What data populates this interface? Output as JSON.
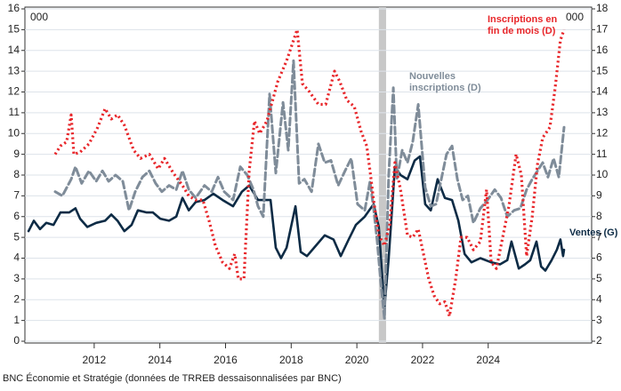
{
  "chart_data": {
    "type": "line",
    "y_unit": "000",
    "y2_unit": "000",
    "caption": "BNC Économie et Stratégie (données de TRREB dessaisonnalisées par BNC)",
    "xlim": [
      2009.89,
      2027.15
    ],
    "xticks": [
      {
        "value": 2012,
        "label": "2012"
      },
      {
        "value": 2014,
        "label": "2014"
      },
      {
        "value": 2016,
        "label": "2016"
      },
      {
        "value": 2018,
        "label": "2018"
      },
      {
        "value": 2020,
        "label": "2020"
      },
      {
        "value": 2022,
        "label": "2022"
      },
      {
        "value": 2024,
        "label": "2024"
      }
    ],
    "ylim": [
      0,
      16
    ],
    "yticks": [
      0,
      1,
      2,
      3,
      4,
      5,
      6,
      7,
      8,
      9,
      10,
      11,
      12,
      13,
      14,
      15,
      16
    ],
    "y2lim": [
      2,
      18
    ],
    "y2ticks": [
      2,
      3,
      4,
      5,
      6,
      7,
      8,
      9,
      10,
      11,
      12,
      13,
      14,
      15,
      16,
      17,
      18
    ],
    "grid": true,
    "shaded_regions": [
      [
        2020.67,
        2020.89
      ]
    ],
    "series": [
      {
        "label": [
          "Ventes (G)"
        ],
        "color": "#0d2b45",
        "style": "solid",
        "x": [
          2010.0,
          2010.16,
          2010.35,
          2010.54,
          2010.76,
          2010.97,
          2011.24,
          2011.43,
          2011.57,
          2011.79,
          2012.06,
          2012.33,
          2012.52,
          2012.71,
          2012.92,
          2013.14,
          2013.33,
          2013.6,
          2013.79,
          2014.01,
          2014.28,
          2014.5,
          2014.69,
          2014.88,
          2015.09,
          2015.36,
          2015.63,
          2015.91,
          2016.23,
          2016.5,
          2016.72,
          2016.99,
          2017.21,
          2017.37,
          2017.53,
          2017.69,
          2017.86,
          2018.13,
          2018.29,
          2018.48,
          2018.75,
          2019.02,
          2019.29,
          2019.51,
          2019.75,
          2019.97,
          2020.24,
          2020.51,
          2020.67,
          2020.84,
          2020.97,
          2021.16,
          2021.33,
          2021.54,
          2021.76,
          2021.92,
          2022.08,
          2022.25,
          2022.46,
          2022.68,
          2022.9,
          2023.09,
          2023.28,
          2023.49,
          2023.76,
          2024.09,
          2024.36,
          2024.58,
          2024.71,
          2024.93,
          2025.12,
          2025.28,
          2025.47,
          2025.61,
          2025.74,
          2025.93,
          2026.09,
          2026.2,
          2026.28,
          2026.31
        ],
        "values": [
          5.3,
          5.8,
          5.4,
          5.7,
          5.6,
          6.2,
          6.2,
          6.4,
          5.9,
          5.5,
          5.7,
          5.8,
          6.1,
          5.8,
          5.3,
          5.6,
          6.3,
          6.2,
          6.2,
          5.9,
          5.8,
          6.0,
          6.9,
          6.3,
          6.7,
          6.8,
          7.1,
          6.8,
          6.5,
          7.2,
          7.5,
          6.8,
          6.8,
          6.8,
          4.5,
          4.0,
          4.5,
          6.5,
          4.3,
          4.1,
          4.6,
          5.1,
          4.9,
          4.1,
          4.9,
          5.6,
          6.0,
          6.6,
          5.5,
          1.6,
          4.0,
          8.4,
          8.0,
          7.8,
          8.7,
          8.9,
          6.6,
          6.3,
          7.8,
          6.9,
          6.8,
          5.8,
          4.2,
          3.8,
          4.0,
          3.8,
          3.7,
          3.9,
          4.8,
          3.5,
          3.7,
          3.9,
          4.8,
          3.6,
          3.4,
          3.9,
          4.4,
          4.9,
          4.1,
          4.4
        ]
      },
      {
        "label": [
          "Nouvelles",
          "inscriptions (D)"
        ],
        "color": "#7f8c99",
        "style": "dashed",
        "axis": "y2",
        "x": [
          2010.81,
          2011.03,
          2011.3,
          2011.43,
          2011.62,
          2011.84,
          2012.06,
          2012.25,
          2012.44,
          2012.65,
          2012.87,
          2013.06,
          2013.25,
          2013.47,
          2013.68,
          2013.87,
          2014.06,
          2014.28,
          2014.5,
          2014.69,
          2014.88,
          2015.09,
          2015.36,
          2015.58,
          2015.77,
          2015.96,
          2016.23,
          2016.45,
          2016.66,
          2016.85,
          2016.99,
          2017.15,
          2017.34,
          2017.53,
          2017.75,
          2017.91,
          2018.07,
          2018.24,
          2018.4,
          2018.62,
          2018.83,
          2019.02,
          2019.21,
          2019.43,
          2019.64,
          2019.83,
          2020.02,
          2020.24,
          2020.4,
          2020.51,
          2020.62,
          2020.73,
          2020.84,
          2020.97,
          2021.11,
          2021.22,
          2021.38,
          2021.54,
          2021.7,
          2021.87,
          2022.08,
          2022.25,
          2022.41,
          2022.57,
          2022.73,
          2022.9,
          2023.06,
          2023.22,
          2023.38,
          2023.55,
          2023.76,
          2023.98,
          2024.2,
          2024.39,
          2024.58,
          2024.79,
          2024.98,
          2025.17,
          2025.34,
          2025.5,
          2025.66,
          2025.82,
          2025.99,
          2026.15,
          2026.31
        ],
        "values": [
          9.2,
          9.0,
          9.8,
          10.4,
          9.6,
          10.2,
          9.7,
          10.2,
          9.7,
          10.0,
          9.7,
          8.3,
          9.2,
          9.9,
          10.2,
          9.6,
          9.2,
          9.5,
          9.3,
          10.2,
          9.3,
          8.9,
          9.5,
          9.2,
          9.9,
          9.2,
          8.8,
          10.4,
          10.0,
          9.3,
          8.5,
          8.0,
          13.9,
          10.1,
          13.5,
          11.2,
          15.5,
          9.6,
          9.8,
          9.2,
          11.5,
          10.6,
          10.7,
          9.5,
          10.2,
          10.8,
          8.6,
          8.3,
          9.7,
          8.4,
          6.8,
          4.8,
          3.1,
          10.0,
          14.2,
          9.8,
          11.2,
          10.6,
          11.6,
          13.4,
          9.4,
          8.5,
          8.6,
          9.8,
          11.0,
          11.4,
          9.8,
          8.8,
          9.0,
          7.7,
          8.4,
          8.8,
          9.3,
          8.9,
          8.0,
          8.3,
          8.4,
          9.3,
          9.8,
          10.2,
          10.6,
          9.9,
          10.8,
          9.9,
          12.3
        ]
      },
      {
        "label": [
          "Inscriptions en",
          "fin de mois (D)"
        ],
        "color": "#e8262a",
        "style": "dotted",
        "axis": "y2",
        "x": [
          2010.81,
          2010.97,
          2011.16,
          2011.3,
          2011.38,
          2011.57,
          2011.84,
          2012.11,
          2012.33,
          2012.52,
          2012.71,
          2012.92,
          2013.2,
          2013.41,
          2013.68,
          2013.95,
          2014.14,
          2014.41,
          2014.69,
          2014.88,
          2015.09,
          2015.31,
          2015.5,
          2015.69,
          2015.91,
          2016.12,
          2016.28,
          2016.39,
          2016.56,
          2016.72,
          2016.88,
          2017.04,
          2017.26,
          2017.59,
          2017.86,
          2018.18,
          2018.34,
          2018.56,
          2018.83,
          2019.05,
          2019.32,
          2019.48,
          2019.7,
          2019.92,
          2020.13,
          2020.3,
          2020.4,
          2020.51,
          2020.67,
          2020.84,
          2021.0,
          2021.16,
          2021.33,
          2021.54,
          2021.7,
          2021.87,
          2022.03,
          2022.19,
          2022.35,
          2022.52,
          2022.68,
          2022.82,
          2023.01,
          2023.17,
          2023.36,
          2023.55,
          2023.76,
          2023.95,
          2024.09,
          2024.25,
          2024.44,
          2024.63,
          2024.85,
          2025.01,
          2025.17,
          2025.34,
          2025.5,
          2025.66,
          2025.88,
          2026.04,
          2026.2,
          2026.31
        ],
        "values": [
          11.0,
          11.4,
          11.6,
          12.9,
          11.0,
          11.1,
          11.5,
          12.3,
          13.2,
          12.7,
          12.9,
          12.4,
          11.2,
          10.8,
          11.0,
          10.3,
          10.8,
          10.1,
          9.5,
          9.0,
          8.8,
          8.8,
          7.8,
          6.6,
          5.8,
          5.5,
          6.2,
          5.0,
          5.0,
          10.2,
          12.6,
          12.0,
          12.6,
          14.5,
          15.5,
          17.0,
          14.4,
          14.0,
          13.4,
          13.4,
          15.0,
          14.5,
          13.6,
          13.3,
          12.1,
          11.4,
          10.2,
          8.8,
          7.1,
          6.6,
          7.6,
          10.6,
          9.3,
          7.1,
          7.0,
          7.4,
          6.2,
          5.0,
          4.2,
          3.8,
          3.9,
          3.2,
          5.0,
          7.0,
          7.0,
          6.4,
          6.8,
          9.3,
          5.8,
          5.5,
          7.0,
          8.5,
          11.0,
          10.0,
          6.1,
          8.0,
          10.5,
          11.8,
          12.3,
          14.2,
          16.5,
          17.0
        ]
      }
    ]
  }
}
